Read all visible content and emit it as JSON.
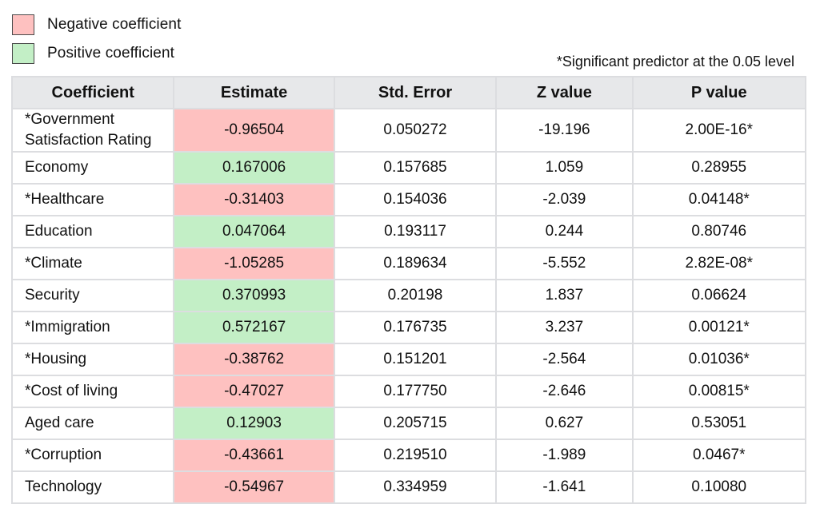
{
  "legend": {
    "negative_label": "Negative coefficient",
    "positive_label": "Positive coefficient",
    "negative_color": "#fec1c0",
    "positive_color": "#c3efc6"
  },
  "footnote": "*Significant predictor at the 0.05 level",
  "chart_data": {
    "type": "table",
    "columns": [
      "Coefficient",
      "Estimate",
      "Std. Error",
      "Z value",
      "P value"
    ],
    "rows": [
      {
        "name": "*Government Satisfaction Rating",
        "estimate": "-0.96504",
        "std_error": "0.050272",
        "z": "-19.196",
        "p": "2.00E-16*",
        "sign": "neg"
      },
      {
        "name": "Economy",
        "estimate": "0.167006",
        "std_error": "0.157685",
        "z": "1.059",
        "p": "0.28955",
        "sign": "pos"
      },
      {
        "name": "*Healthcare",
        "estimate": "-0.31403",
        "std_error": "0.154036",
        "z": "-2.039",
        "p": "0.04148*",
        "sign": "neg"
      },
      {
        "name": "Education",
        "estimate": "0.047064",
        "std_error": "0.193117",
        "z": "0.244",
        "p": "0.80746",
        "sign": "pos"
      },
      {
        "name": "*Climate",
        "estimate": "-1.05285",
        "std_error": "0.189634",
        "z": "-5.552",
        "p": "2.82E-08*",
        "sign": "neg"
      },
      {
        "name": "Security",
        "estimate": "0.370993",
        "std_error": "0.20198",
        "z": "1.837",
        "p": "0.06624",
        "sign": "pos"
      },
      {
        "name": "*Immigration",
        "estimate": "0.572167",
        "std_error": "0.176735",
        "z": "3.237",
        "p": "0.00121*",
        "sign": "pos"
      },
      {
        "name": "*Housing",
        "estimate": "-0.38762",
        "std_error": "0.151201",
        "z": "-2.564",
        "p": "0.01036*",
        "sign": "neg"
      },
      {
        "name": "*Cost of living",
        "estimate": "-0.47027",
        "std_error": "0.177750",
        "z": "-2.646",
        "p": "0.00815*",
        "sign": "neg"
      },
      {
        "name": "Aged care",
        "estimate": "0.12903",
        "std_error": "0.205715",
        "z": "0.627",
        "p": "0.53051",
        "sign": "pos"
      },
      {
        "name": "*Corruption",
        "estimate": "-0.43661",
        "std_error": "0.219510",
        "z": "-1.989",
        "p": "0.0467*",
        "sign": "neg"
      },
      {
        "name": "Technology",
        "estimate": "-0.54967",
        "std_error": "0.334959",
        "z": "-1.641",
        "p": "0.10080",
        "sign": "neg"
      }
    ]
  }
}
